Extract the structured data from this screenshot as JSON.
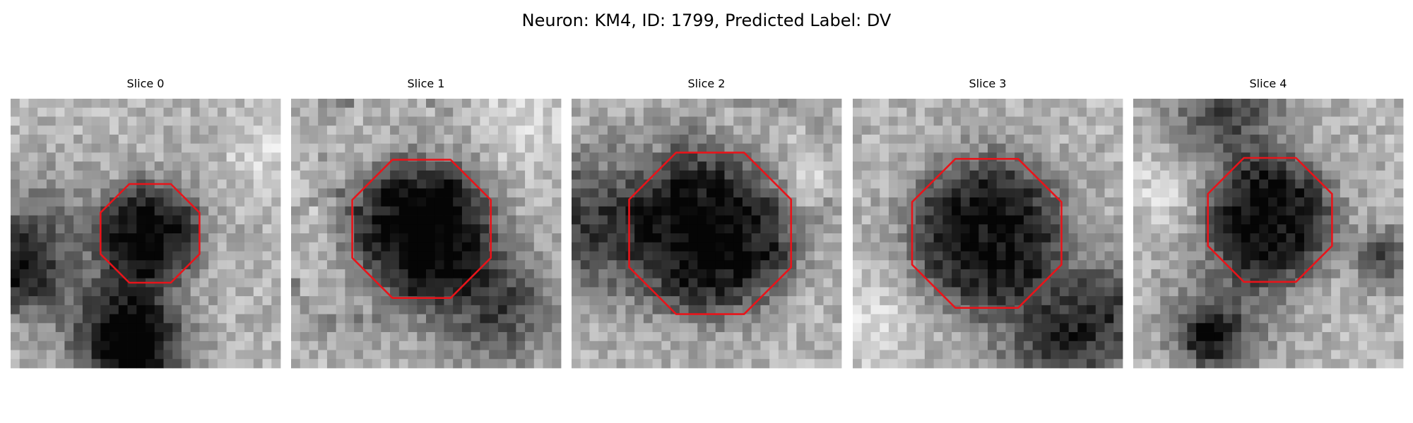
{
  "title": "Neuron: KM4, ID: 1799, Predicted Label: DV",
  "panels": [
    {
      "title": "Slice 0"
    },
    {
      "title": "Slice 1"
    },
    {
      "title": "Slice 2"
    },
    {
      "title": "Slice 3"
    },
    {
      "title": "Slice 4"
    }
  ]
}
